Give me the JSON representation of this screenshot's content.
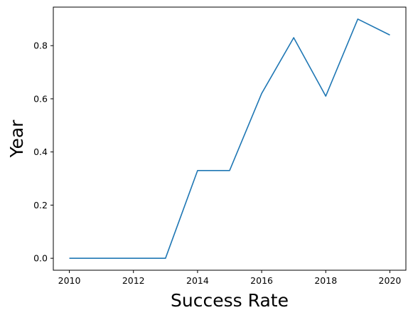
{
  "chart_data": {
    "type": "line",
    "x": [
      2010,
      2011,
      2012,
      2013,
      2014,
      2015,
      2016,
      2017,
      2018,
      2019,
      2020
    ],
    "series": [
      {
        "values": [
          0.0,
          0.0,
          0.0,
          0.0,
          0.33,
          0.33,
          0.62,
          0.83,
          0.61,
          0.9,
          0.84
        ],
        "color": "#1f77b4"
      }
    ],
    "xlabel": "Success Rate",
    "ylabel": "Year",
    "xlim": [
      2009.5,
      2020.5
    ],
    "ylim": [
      -0.045,
      0.945
    ],
    "xticks": [
      2010,
      2012,
      2014,
      2016,
      2018,
      2020
    ],
    "yticks": [
      0.0,
      0.2,
      0.4,
      0.6,
      0.8
    ],
    "ytick_labels": [
      "0.0",
      "0.2",
      "0.4",
      "0.6",
      "0.8"
    ],
    "grid": false
  }
}
